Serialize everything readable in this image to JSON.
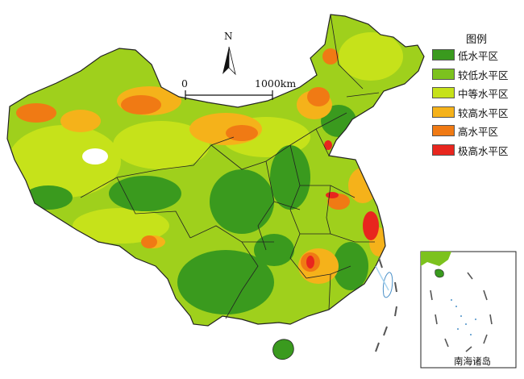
{
  "legend": {
    "title": "图例",
    "items": [
      {
        "label": "低水平区",
        "color": "#3a9a1e"
      },
      {
        "label": "较低水平区",
        "color": "#7cc21e"
      },
      {
        "label": "中等水平区",
        "color": "#c6e21a"
      },
      {
        "label": "较高水平区",
        "color": "#f5b21a"
      },
      {
        "label": "高水平区",
        "color": "#f07a14"
      },
      {
        "label": "极高水平区",
        "color": "#e8261e"
      }
    ]
  },
  "compass": {
    "label": "N",
    "icon": "north-arrow-icon"
  },
  "scale_bar": {
    "start": "0",
    "end": "1000km"
  },
  "inset": {
    "label": "南海诸岛"
  },
  "colors": {
    "border": "#222222",
    "sea_water": "#a8d4f0",
    "background": "#ffffff"
  }
}
